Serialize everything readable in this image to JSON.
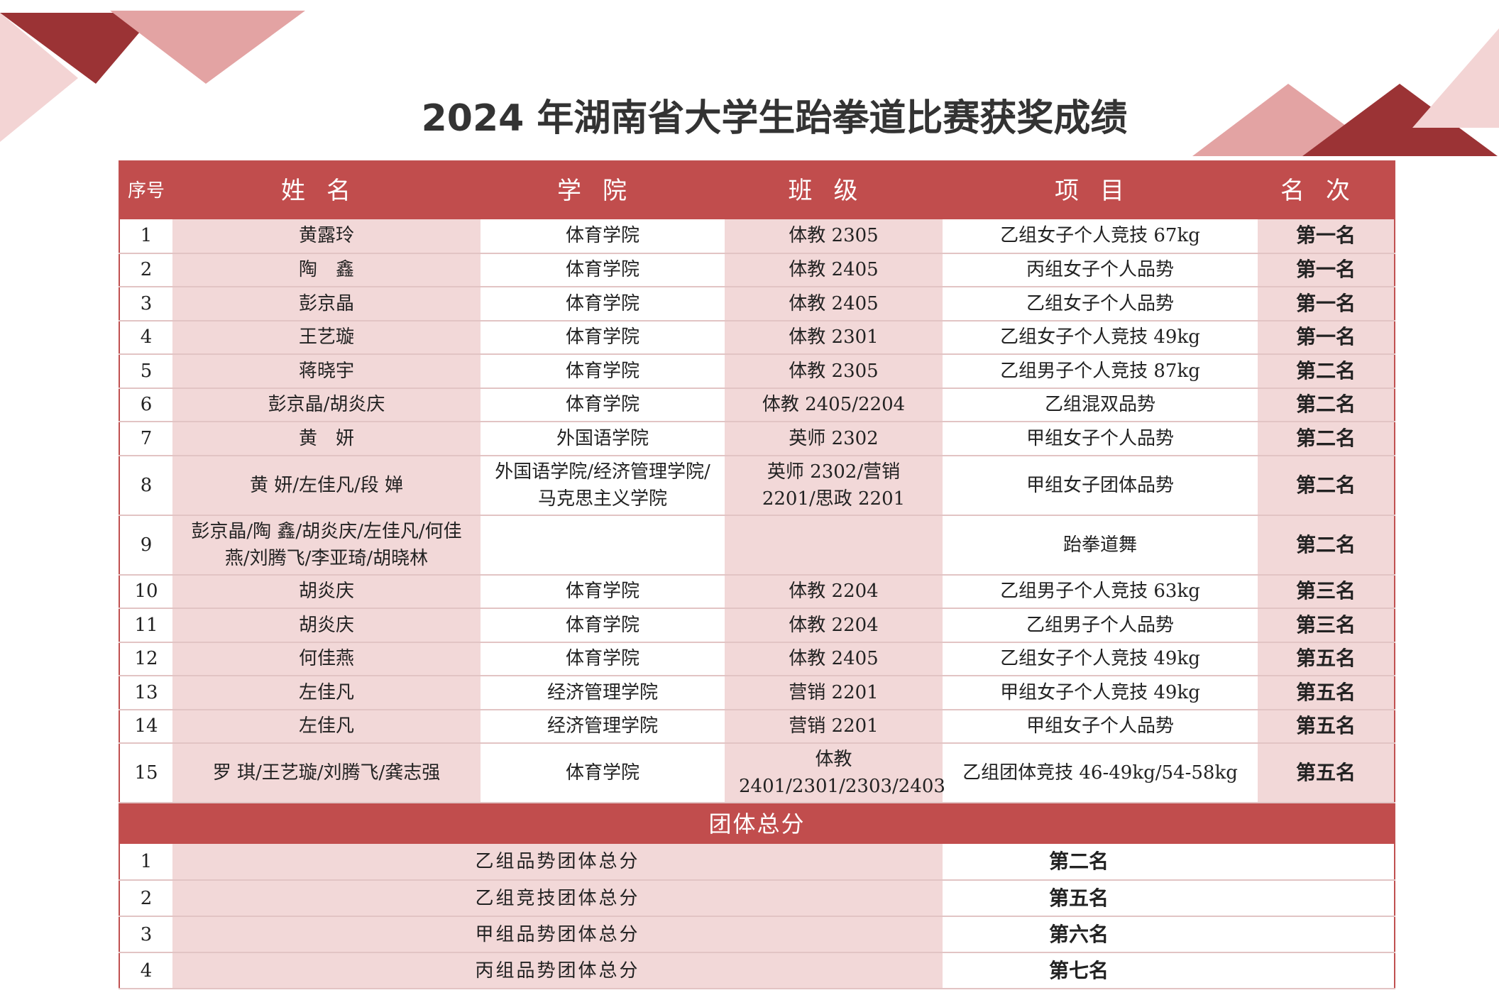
{
  "title": "2024 年湖南省大学生跆拳道比赛获奖成绩",
  "headers": {
    "seq": "序号",
    "name": "姓名",
    "college": "学院",
    "class": "班级",
    "event": "项目",
    "rank": "名次"
  },
  "rows": [
    {
      "seq": "1",
      "name": "黄露玲",
      "college": "体育学院",
      "class": "体教 2305",
      "event": "乙组女子个人竞技 67kg",
      "rank": "第一名"
    },
    {
      "seq": "2",
      "name": "陶　鑫",
      "college": "体育学院",
      "class": "体教 2405",
      "event": "丙组女子个人品势",
      "rank": "第一名"
    },
    {
      "seq": "3",
      "name": "彭京晶",
      "college": "体育学院",
      "class": "体教 2405",
      "event": "乙组女子个人品势",
      "rank": "第一名"
    },
    {
      "seq": "4",
      "name": "王艺璇",
      "college": "体育学院",
      "class": "体教 2301",
      "event": "乙组女子个人竞技 49kg",
      "rank": "第一名"
    },
    {
      "seq": "5",
      "name": "蒋晓宇",
      "college": "体育学院",
      "class": "体教 2305",
      "event": "乙组男子个人竞技 87kg",
      "rank": "第二名"
    },
    {
      "seq": "6",
      "name": "彭京晶/胡炎庆",
      "college": "体育学院",
      "class": "体教 2405/2204",
      "event": "乙组混双品势",
      "rank": "第二名"
    },
    {
      "seq": "7",
      "name": "黄　妍",
      "college": "外国语学院",
      "class": "英师 2302",
      "event": "甲组女子个人品势",
      "rank": "第二名"
    },
    {
      "seq": "8",
      "name": "黄 妍/左佳凡/段 婵",
      "college": "外国语学院/经济管理学院/马克思主义学院",
      "class": "英师 2302/营销 2201/思政 2201",
      "event": "甲组女子团体品势",
      "rank": "第二名"
    },
    {
      "seq": "9",
      "name": "彭京晶/陶 鑫/胡炎庆/左佳凡/何佳燕/刘腾飞/李亚琦/胡晓林",
      "college": "",
      "class": "",
      "event": "跆拳道舞",
      "rank": "第二名"
    },
    {
      "seq": "10",
      "name": "胡炎庆",
      "college": "体育学院",
      "class": "体教 2204",
      "event": "乙组男子个人竞技 63kg",
      "rank": "第三名"
    },
    {
      "seq": "11",
      "name": "胡炎庆",
      "college": "体育学院",
      "class": "体教 2204",
      "event": "乙组男子个人品势",
      "rank": "第三名"
    },
    {
      "seq": "12",
      "name": "何佳燕",
      "college": "体育学院",
      "class": "体教 2405",
      "event": "乙组女子个人竞技 49kg",
      "rank": "第五名"
    },
    {
      "seq": "13",
      "name": "左佳凡",
      "college": "经济管理学院",
      "class": "营销 2201",
      "event": "甲组女子个人竞技 49kg",
      "rank": "第五名"
    },
    {
      "seq": "14",
      "name": "左佳凡",
      "college": "经济管理学院",
      "class": "营销 2201",
      "event": "甲组女子个人品势",
      "rank": "第五名"
    },
    {
      "seq": "15",
      "name": "罗 琪/王艺璇/刘腾飞/龚志强",
      "college": "体育学院",
      "class": "体教 2401/2301/2303/2403",
      "event": "乙组团体竞技 46-49kg/54-58kg",
      "rank": "第五名"
    }
  ],
  "team_section": "团体总分",
  "team_rows": [
    {
      "seq": "1",
      "item": "乙组品势团体总分",
      "rank": "第二名"
    },
    {
      "seq": "2",
      "item": "乙组竞技团体总分",
      "rank": "第五名"
    },
    {
      "seq": "3",
      "item": "甲组品势团体总分",
      "rank": "第六名"
    },
    {
      "seq": "4",
      "item": "丙组品势团体总分",
      "rank": "第七名"
    }
  ],
  "colors": {
    "accent": "#c14d4d",
    "dark": "#9b3335",
    "light": "#e3a3a3",
    "cell": "#f2d8d8"
  }
}
